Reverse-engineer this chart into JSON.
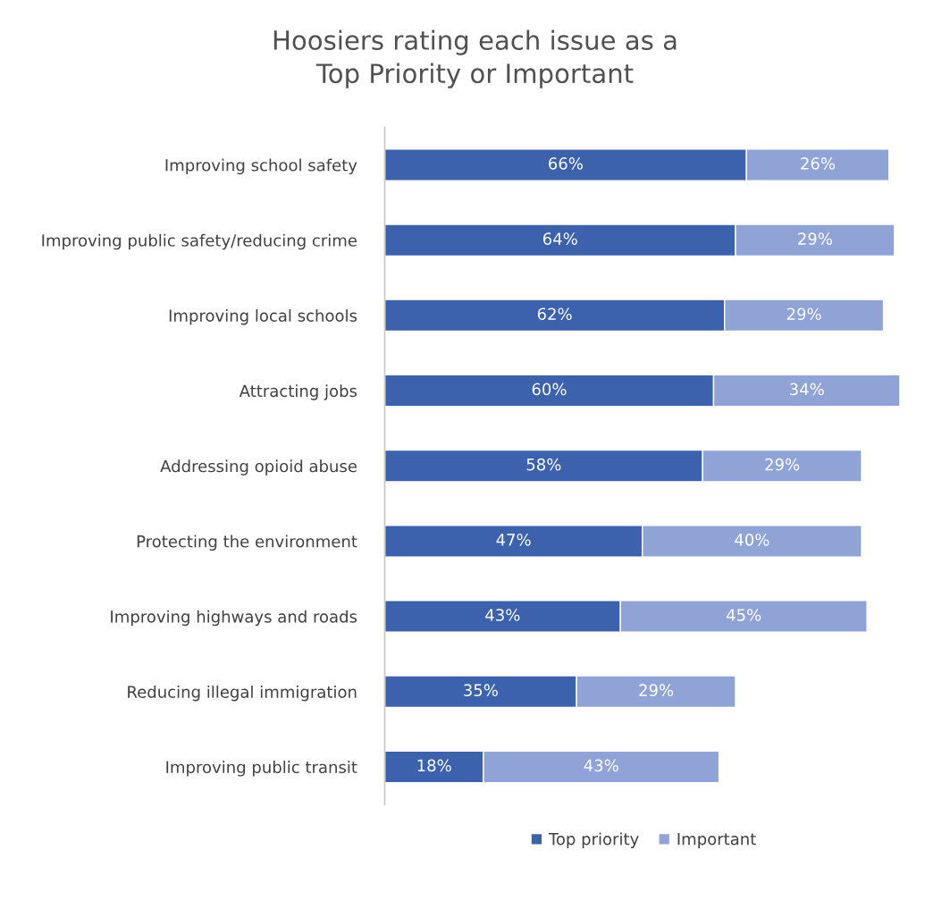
{
  "chart_data": {
    "type": "bar",
    "orientation": "horizontal",
    "stacked": true,
    "title": "Hoosiers rating each issue as a\nTop Priority or Important",
    "categories": [
      "Improving school safety",
      "Improving public safety/reducing crime",
      "Improving local schools",
      "Attracting jobs",
      "Addressing opioid abuse",
      "Protecting the environment",
      "Improving highways and roads",
      "Reducing illegal immigration",
      "Improving public transit"
    ],
    "series": [
      {
        "name": "Top priority",
        "color": "#3c62ad",
        "values": [
          66,
          64,
          62,
          60,
          58,
          47,
          43,
          35,
          18
        ],
        "value_labels": [
          "66%",
          "64%",
          "62%",
          "60%",
          "58%",
          "47%",
          "43%",
          "35%",
          "18%"
        ]
      },
      {
        "name": "Important",
        "color": "#8fa3d7",
        "values": [
          26,
          29,
          29,
          34,
          29,
          40,
          45,
          29,
          43
        ],
        "value_labels": [
          "26%",
          "29%",
          "29%",
          "34%",
          "29%",
          "40%",
          "45%",
          "29%",
          "43%"
        ]
      }
    ],
    "tick_labels": "y",
    "grid": false,
    "legend": "bottom"
  }
}
